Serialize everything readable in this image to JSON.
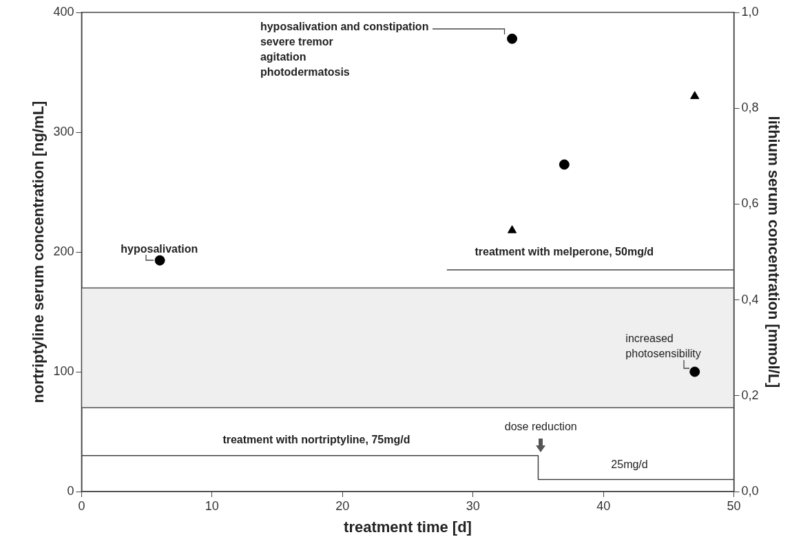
{
  "chart_data": {
    "type": "scatter",
    "xlabel": "treatment time [d]",
    "ylabel": "nortriptyline serum concentration [ng/mL]",
    "y2label": "lithium serum concentration [mmol/L]",
    "xlim": [
      0,
      50
    ],
    "xticks": [
      0,
      10,
      20,
      30,
      40,
      50
    ],
    "ylim": [
      0,
      400
    ],
    "yticks": [
      0,
      100,
      200,
      300,
      400
    ],
    "y2lim": [
      0,
      1
    ],
    "y2ticks": [
      {
        "value": 0,
        "label": "0,0"
      },
      {
        "value": 0.2,
        "label": "0,2"
      },
      {
        "value": 0.4,
        "label": "0,4"
      },
      {
        "value": 0.6,
        "label": "0,6"
      },
      {
        "value": 0.8,
        "label": "0,8"
      },
      {
        "value": 1,
        "label": "1,0"
      }
    ],
    "series": [
      {
        "marker": "circle",
        "color": "#000000",
        "x": [
          6,
          33,
          37,
          47
        ],
        "values": [
          193,
          378,
          273,
          100
        ]
      },
      {
        "marker": "triangle",
        "color": "#000000",
        "axis": "y2",
        "x": [
          33,
          47
        ],
        "values": [
          0.545,
          0.825
        ]
      },
      {
        "type": "line",
        "marker": "none",
        "color": "#404040",
        "x": [
          0,
          35,
          35,
          50
        ],
        "values": [
          30,
          30,
          10,
          10
        ]
      },
      {
        "type": "line",
        "marker": "none",
        "color": "#404040",
        "x": [
          28,
          50
        ],
        "values": [
          185,
          185
        ]
      }
    ],
    "bands": [
      {
        "axis": "y",
        "from": 70,
        "to": 170,
        "color": "#efefef"
      }
    ],
    "ref_lines": [
      {
        "axis": "y",
        "value": 70,
        "color": "#555555"
      },
      {
        "axis": "y",
        "value": 170,
        "color": "#555555"
      }
    ],
    "annotations": [
      "hyposalivation",
      "hyposalivation and constipation\nsevere tremor\nagitation\nphotodermatosis",
      "increased\nphotosensibility",
      "dose reduction",
      {
        "text": "treatment with nortriptyline, 75mg/d",
        "x": 18,
        "y": 30
      },
      {
        "text": "25mg/d",
        "x": 42,
        "y": 10
      },
      {
        "text": "treatment with melperone, 50mg/d",
        "x": 37,
        "y": 185
      }
    ],
    "grid": false,
    "legend": false
  }
}
